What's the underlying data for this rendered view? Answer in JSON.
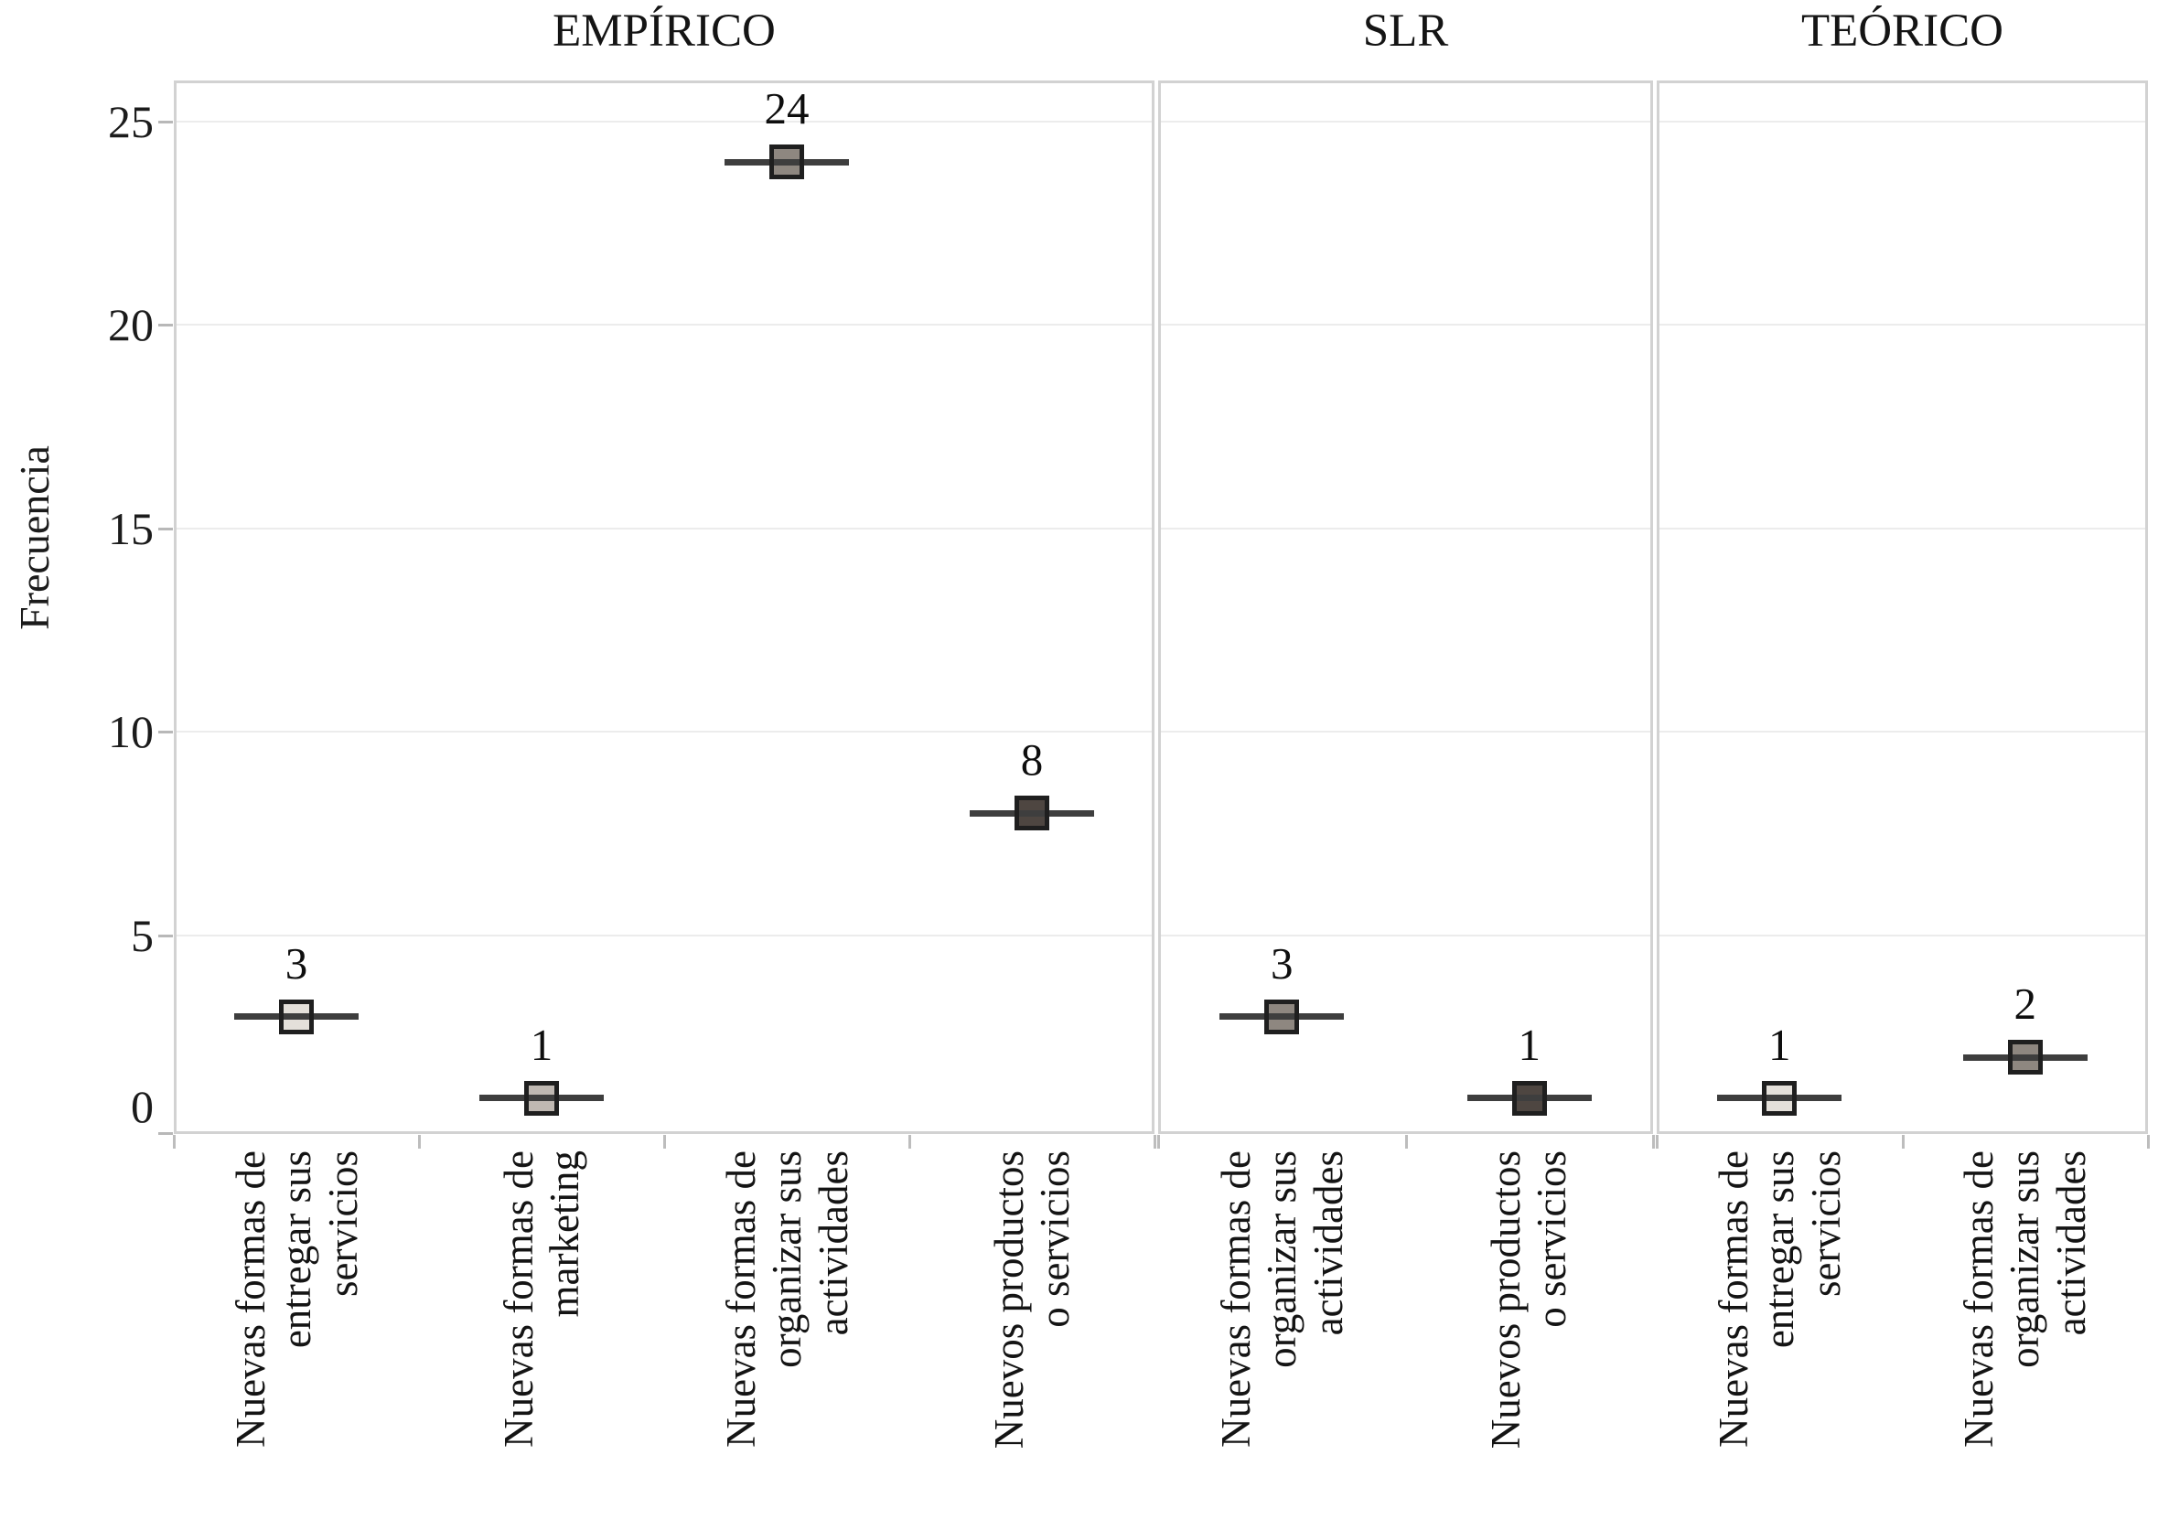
{
  "chart_data": {
    "type": "scatter",
    "marker": "square-crossbar",
    "title": "",
    "ylabel": "Frecuencia",
    "xlabel": "",
    "yticks": [
      0,
      5,
      10,
      15,
      20,
      25
    ],
    "ylim": [
      0,
      26
    ],
    "grid": "horizontal-major",
    "legend": "none",
    "facets": [
      {
        "title": "EMPÍRICO",
        "points": [
          {
            "category": "Nuevas formas de entregar sus servicios",
            "label_lines": [
              "Nuevas formas de",
              "entregar sus",
              "servicios"
            ],
            "value": 3
          },
          {
            "category": "Nuevas formas de marketing",
            "label_lines": [
              "Nuevas formas de",
              "marketing"
            ],
            "value": 1
          },
          {
            "category": "Nuevas formas de organizar sus actividades",
            "label_lines": [
              "Nuevas formas de",
              "organizar sus",
              "actividades"
            ],
            "value": 24
          },
          {
            "category": "Nuevos productos o servicios",
            "label_lines": [
              "Nuevos productos",
              "o servicios"
            ],
            "value": 8
          }
        ]
      },
      {
        "title": "SLR",
        "points": [
          {
            "category": "Nuevas formas de organizar sus actividades",
            "label_lines": [
              "Nuevas formas de",
              "organizar sus",
              "actividades"
            ],
            "value": 3
          },
          {
            "category": "Nuevos productos o servicios",
            "label_lines": [
              "Nuevos productos",
              "o servicios"
            ],
            "value": 1
          }
        ]
      },
      {
        "title": "TEÓRICO",
        "points": [
          {
            "category": "Nuevas formas de entregar sus servicios",
            "label_lines": [
              "Nuevas formas de",
              "entregar sus",
              "servicios"
            ],
            "value": 1
          },
          {
            "category": "Nuevas formas de organizar sus actividades",
            "label_lines": [
              "Nuevas formas de",
              "organizar sus",
              "actividades"
            ],
            "value": 2
          }
        ]
      }
    ],
    "category_fills": {
      "Nuevas formas de entregar sus servicios": "#e4e0da",
      "Nuevas formas de marketing": "#bfb8b2",
      "Nuevas formas de organizar sus actividades": "#8e8780",
      "Nuevos productos o servicios": "#4e4641"
    },
    "colors": {
      "panel_border": "#d2d2d2",
      "gridline": "#ececec",
      "crossbar_line": "#3e3e3e",
      "square_border": "#1f1f1f",
      "text": "#1b1b1b"
    }
  }
}
